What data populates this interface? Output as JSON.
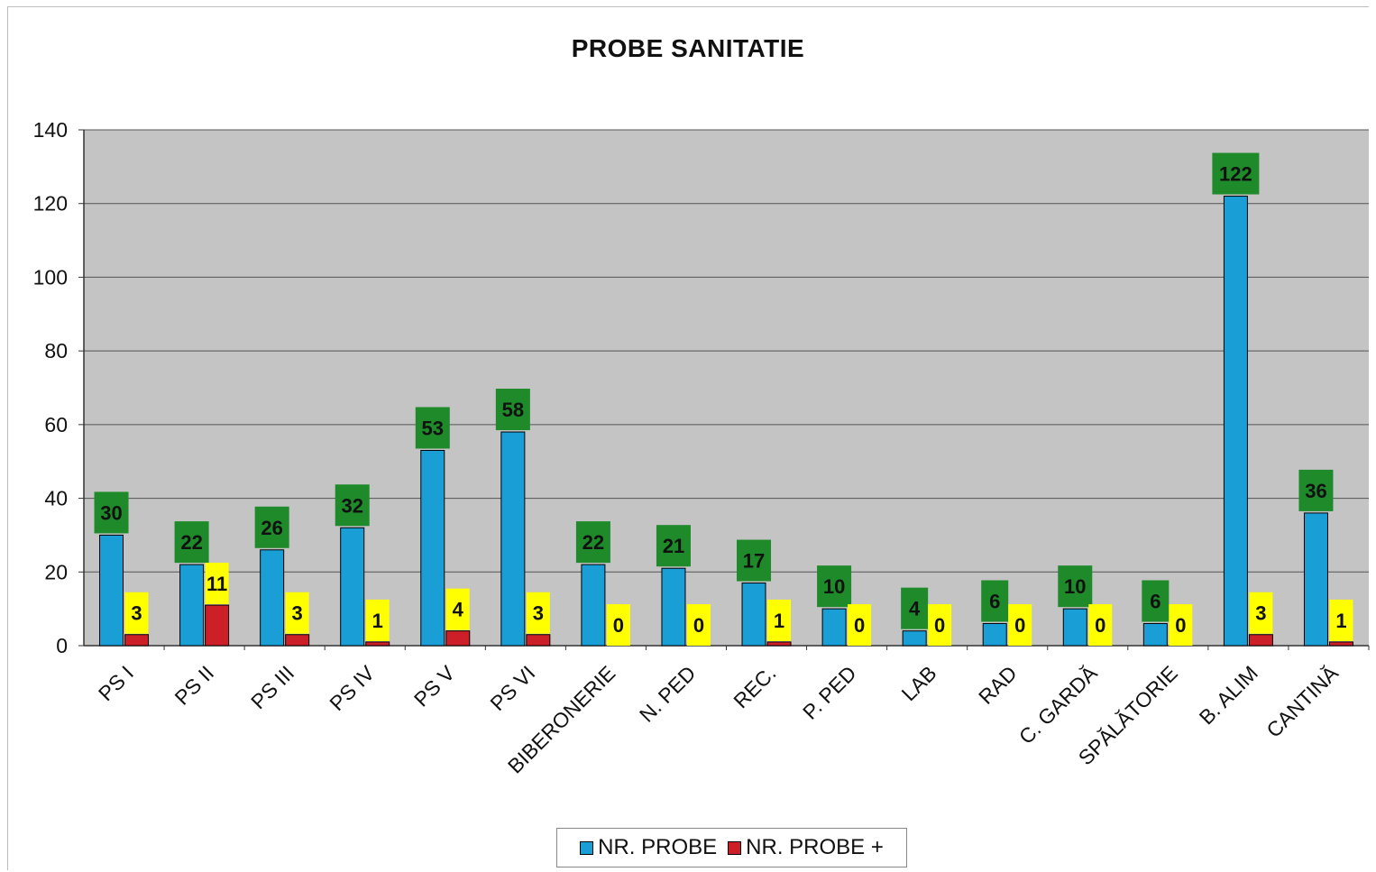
{
  "chart_data": {
    "type": "bar",
    "title": "PROBE SANITATIE",
    "xlabel": "",
    "ylabel": "",
    "ylim": [
      0,
      140
    ],
    "yticks": [
      "0",
      "20",
      "40",
      "60",
      "80",
      "100",
      "120",
      "140"
    ],
    "grid": true,
    "legend_position": "bottom",
    "categories": [
      "PS I",
      "PS II",
      "PS III",
      "PS IV",
      "PS V",
      "PS VI",
      "BIBERONERIE",
      "N. PED",
      "REC.",
      "P. PED",
      "LAB",
      "RAD",
      "C. GARDĂ",
      "SPĂLĂTORIE",
      "B. ALIM",
      "CANTINĂ"
    ],
    "series": [
      {
        "name": "NR. PROBE",
        "color": "#1a9ed6",
        "values": [
          30,
          22,
          26,
          32,
          53,
          58,
          22,
          21,
          17,
          10,
          4,
          6,
          10,
          6,
          122,
          36
        ]
      },
      {
        "name": "NR. PROBE +",
        "color": "#cc1f28",
        "values": [
          3,
          11,
          3,
          1,
          4,
          3,
          0,
          0,
          1,
          0,
          0,
          0,
          0,
          0,
          3,
          1
        ]
      }
    ],
    "colors": {
      "plot_background": "#c4c4c4",
      "label_box_series1": "#1e8a2a",
      "label_box_series2": "#ffff00"
    }
  }
}
